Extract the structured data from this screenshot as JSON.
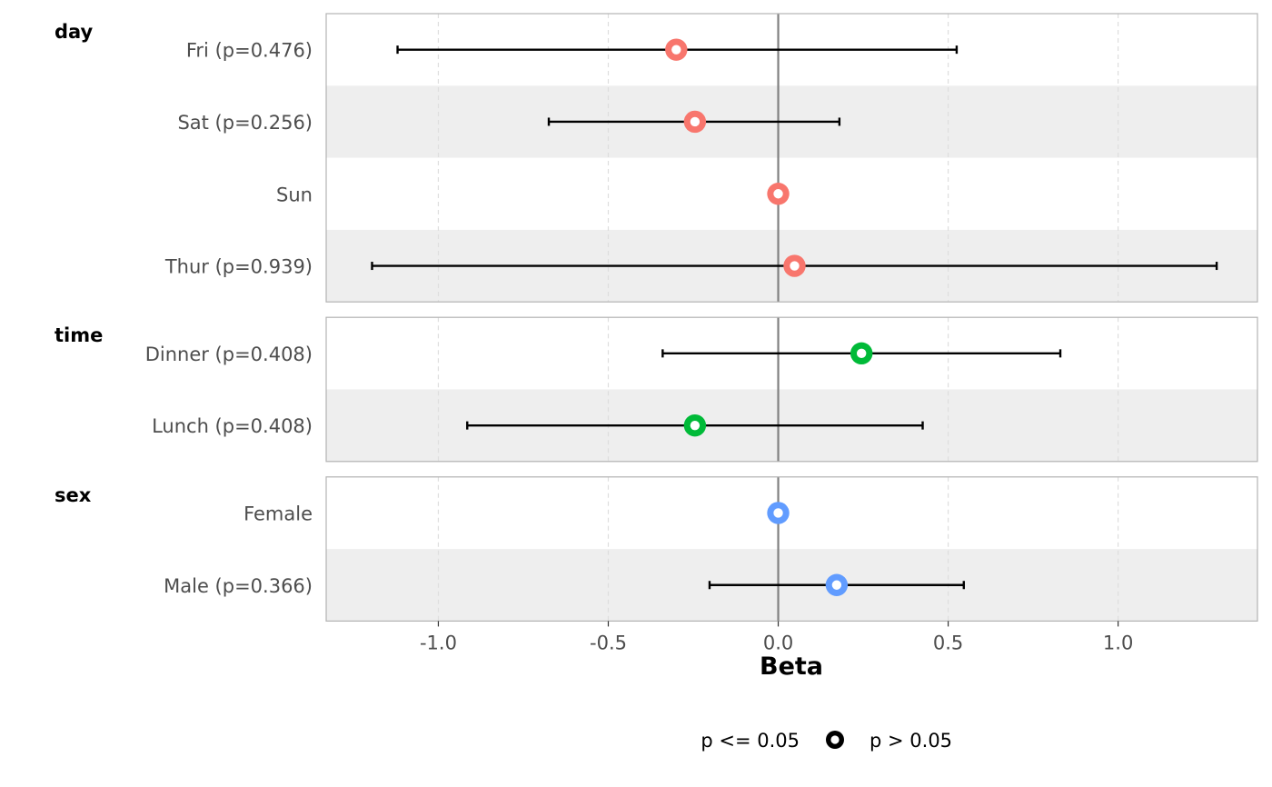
{
  "chart_data": {
    "type": "forest",
    "xlabel": "Beta",
    "xlim": [
      -1.33,
      1.41
    ],
    "x_ticks": [
      -1.0,
      -0.5,
      0.0,
      0.5,
      1.0
    ],
    "x_tick_labels": [
      "-1.0",
      "-0.5",
      "0.0",
      "0.5",
      "1.0"
    ],
    "reference_line": 0,
    "grid": "vertical dashed",
    "groups": [
      {
        "name": "day",
        "color": "#F8766D",
        "rows": [
          {
            "label": "Fri (p=0.476)",
            "estimate": -0.3,
            "ci_low": -1.12,
            "ci_high": 0.525
          },
          {
            "label": "Sat (p=0.256)",
            "estimate": -0.245,
            "ci_low": -0.675,
            "ci_high": 0.18
          },
          {
            "label": "Sun",
            "estimate": 0.0,
            "ci_low": null,
            "ci_high": null
          },
          {
            "label": "Thur (p=0.939)",
            "estimate": 0.048,
            "ci_low": -1.195,
            "ci_high": 1.29
          }
        ]
      },
      {
        "name": "time",
        "color": "#00BA38",
        "rows": [
          {
            "label": "Dinner (p=0.408)",
            "estimate": 0.245,
            "ci_low": -0.34,
            "ci_high": 0.83
          },
          {
            "label": "Lunch (p=0.408)",
            "estimate": -0.245,
            "ci_low": -0.915,
            "ci_high": 0.425
          }
        ]
      },
      {
        "name": "sex",
        "color": "#619CFF",
        "rows": [
          {
            "label": "Female",
            "estimate": 0.0,
            "ci_low": null,
            "ci_high": null
          },
          {
            "label": "Male (p=0.366)",
            "estimate": 0.172,
            "ci_low": -0.202,
            "ci_high": 0.546
          }
        ]
      }
    ],
    "legend": {
      "position": "bottom",
      "items": [
        {
          "label": "p <= 0.05",
          "marker": "filled"
        },
        {
          "label": "p > 0.05",
          "marker": "hollow"
        }
      ]
    }
  }
}
